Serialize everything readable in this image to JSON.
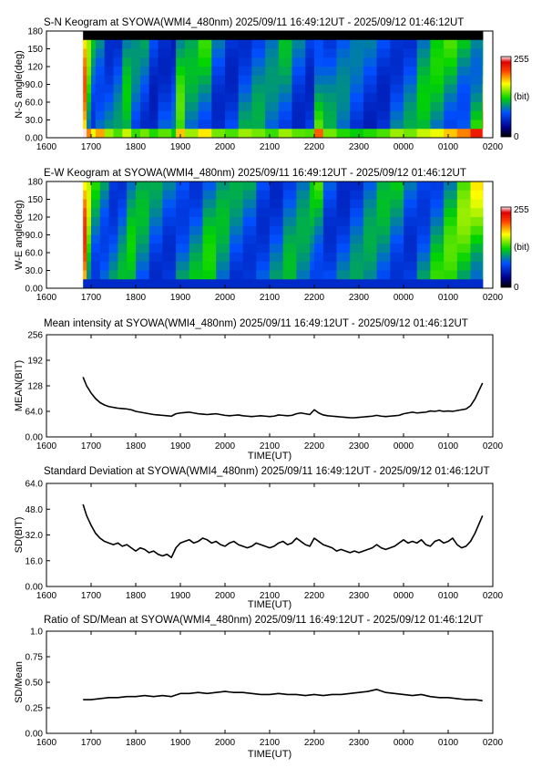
{
  "colors": {
    "line": "#000000",
    "axis": "#000000",
    "background": "#ffffff"
  },
  "x_axis": {
    "label": "TIME(UT)",
    "ticks": [
      "1600",
      "1700",
      "1800",
      "1900",
      "2000",
      "2100",
      "2200",
      "2300",
      "0000",
      "0100",
      "0200"
    ]
  },
  "chart_data": [
    {
      "id": "sn",
      "type": "heatmap",
      "title": "S-N Keogram at SYOWA(WMI4_480nm)   2025/09/11 16:49:12UT - 2025/09/12 01:46:12UT",
      "xlabel": "",
      "ylabel": "N-S angle(deg)",
      "ylim": [
        0,
        180
      ],
      "yticks": [
        "180",
        "150",
        "120",
        "90.0",
        "60.0",
        "30.0",
        "0.00"
      ],
      "xlim": [
        16.0,
        26.0
      ],
      "data_xrange": [
        16.82,
        25.77
      ],
      "colorbar": {
        "labels": [
          "255",
          "(bit)",
          "0"
        ],
        "range": [
          0,
          255
        ],
        "unit": "(bit)"
      },
      "columns": [
        {
          "x": 16.82,
          "v": 180
        },
        {
          "x": 16.9,
          "v": 130
        },
        {
          "x": 17.0,
          "v": 110
        },
        {
          "x": 17.1,
          "v": 125
        },
        {
          "x": 17.3,
          "v": 100
        },
        {
          "x": 17.5,
          "v": 90
        },
        {
          "x": 17.7,
          "v": 105
        },
        {
          "x": 17.9,
          "v": 88
        },
        {
          "x": 18.1,
          "v": 95
        },
        {
          "x": 18.3,
          "v": 85
        },
        {
          "x": 18.5,
          "v": 92
        },
        {
          "x": 18.8,
          "v": 80
        },
        {
          "x": 18.9,
          "v": 120
        },
        {
          "x": 19.1,
          "v": 100
        },
        {
          "x": 19.4,
          "v": 115
        },
        {
          "x": 19.7,
          "v": 95
        },
        {
          "x": 20.0,
          "v": 90
        },
        {
          "x": 20.3,
          "v": 100
        },
        {
          "x": 20.6,
          "v": 95
        },
        {
          "x": 20.9,
          "v": 88
        },
        {
          "x": 21.2,
          "v": 100
        },
        {
          "x": 21.5,
          "v": 92
        },
        {
          "x": 21.8,
          "v": 90
        },
        {
          "x": 22.0,
          "v": 135
        },
        {
          "x": 22.2,
          "v": 95
        },
        {
          "x": 22.5,
          "v": 85
        },
        {
          "x": 22.8,
          "v": 80
        },
        {
          "x": 23.1,
          "v": 85
        },
        {
          "x": 23.4,
          "v": 90
        },
        {
          "x": 23.7,
          "v": 100
        },
        {
          "x": 24.0,
          "v": 95
        },
        {
          "x": 24.3,
          "v": 105
        },
        {
          "x": 24.6,
          "v": 110
        },
        {
          "x": 24.9,
          "v": 120
        },
        {
          "x": 25.2,
          "v": 130
        },
        {
          "x": 25.5,
          "v": 150
        },
        {
          "x": 25.77,
          "v": 190
        }
      ]
    },
    {
      "id": "ew",
      "type": "heatmap",
      "title": "E-W Keogram at SYOWA(WMI4_480nm)   2025/09/11 16:49:12UT - 2025/09/12 01:46:12UT",
      "xlabel": "",
      "ylabel": "W-E angle(deg)",
      "ylim": [
        0,
        180
      ],
      "yticks": [
        "180",
        "150",
        "120",
        "90.0",
        "60.0",
        "30.0",
        "0.00"
      ],
      "xlim": [
        16.0,
        26.0
      ],
      "data_xrange": [
        16.82,
        25.77
      ],
      "colorbar": {
        "labels": [
          "255",
          "(bit)",
          "0"
        ],
        "range": [
          0,
          255
        ],
        "unit": "(bit)"
      },
      "columns": [
        {
          "x": 16.82,
          "v": 190
        },
        {
          "x": 16.9,
          "v": 140
        },
        {
          "x": 17.0,
          "v": 115
        },
        {
          "x": 17.2,
          "v": 120
        },
        {
          "x": 17.4,
          "v": 105
        },
        {
          "x": 17.6,
          "v": 100
        },
        {
          "x": 17.8,
          "v": 108
        },
        {
          "x": 18.0,
          "v": 100
        },
        {
          "x": 18.3,
          "v": 95
        },
        {
          "x": 18.6,
          "v": 100
        },
        {
          "x": 18.9,
          "v": 115
        },
        {
          "x": 19.2,
          "v": 105
        },
        {
          "x": 19.5,
          "v": 110
        },
        {
          "x": 19.8,
          "v": 100
        },
        {
          "x": 20.1,
          "v": 95
        },
        {
          "x": 20.4,
          "v": 105
        },
        {
          "x": 20.7,
          "v": 100
        },
        {
          "x": 21.0,
          "v": 95
        },
        {
          "x": 21.3,
          "v": 100
        },
        {
          "x": 21.6,
          "v": 95
        },
        {
          "x": 21.9,
          "v": 105
        },
        {
          "x": 22.0,
          "v": 125
        },
        {
          "x": 22.2,
          "v": 100
        },
        {
          "x": 22.5,
          "v": 95
        },
        {
          "x": 22.8,
          "v": 92
        },
        {
          "x": 23.1,
          "v": 95
        },
        {
          "x": 23.4,
          "v": 100
        },
        {
          "x": 23.7,
          "v": 105
        },
        {
          "x": 24.0,
          "v": 100
        },
        {
          "x": 24.3,
          "v": 110
        },
        {
          "x": 24.6,
          "v": 115
        },
        {
          "x": 24.9,
          "v": 120
        },
        {
          "x": 25.2,
          "v": 130
        },
        {
          "x": 25.5,
          "v": 150
        },
        {
          "x": 25.77,
          "v": 195
        }
      ]
    },
    {
      "id": "mean",
      "type": "line",
      "title": "Mean intensity at SYOWA(WMI4_480nm)   2025/09/11 16:49:12UT - 2025/09/12 01:46:12UT",
      "xlabel": "TIME(UT)",
      "ylabel": "MEAN(BIT)",
      "ylim": [
        0,
        256
      ],
      "yticks": [
        "256",
        "192",
        "128",
        "64.0",
        "0.00"
      ],
      "xlim": [
        16.0,
        26.0
      ],
      "series": [
        {
          "x": [
            16.82,
            16.9,
            17.0,
            17.1,
            17.2,
            17.3,
            17.4,
            17.5,
            17.6,
            17.7,
            17.8,
            17.9,
            18.0,
            18.1,
            18.2,
            18.3,
            18.4,
            18.5,
            18.6,
            18.7,
            18.8,
            18.9,
            19.0,
            19.1,
            19.2,
            19.3,
            19.4,
            19.5,
            19.6,
            19.7,
            19.8,
            19.9,
            20.0,
            20.1,
            20.2,
            20.3,
            20.4,
            20.5,
            20.6,
            20.7,
            20.8,
            20.9,
            21.0,
            21.1,
            21.2,
            21.3,
            21.4,
            21.5,
            21.6,
            21.7,
            21.8,
            21.9,
            22.0,
            22.1,
            22.2,
            22.3,
            22.4,
            22.5,
            22.6,
            22.7,
            22.8,
            22.9,
            23.0,
            23.1,
            23.2,
            23.3,
            23.4,
            23.5,
            23.6,
            23.7,
            23.8,
            23.9,
            24.0,
            24.1,
            24.2,
            24.3,
            24.4,
            24.5,
            24.6,
            24.7,
            24.8,
            24.9,
            25.0,
            25.1,
            25.2,
            25.3,
            25.4,
            25.5,
            25.6,
            25.77
          ],
          "y": [
            150,
            128,
            110,
            96,
            86,
            80,
            76,
            74,
            72,
            71,
            70,
            68,
            64,
            62,
            60,
            58,
            56,
            55,
            54,
            53,
            52,
            58,
            60,
            61,
            62,
            60,
            58,
            57,
            56,
            57,
            58,
            56,
            54,
            53,
            54,
            55,
            53,
            52,
            51,
            52,
            53,
            52,
            51,
            52,
            55,
            54,
            53,
            54,
            58,
            60,
            58,
            56,
            68,
            60,
            55,
            53,
            52,
            51,
            50,
            49,
            48,
            48,
            49,
            50,
            51,
            52,
            54,
            52,
            51,
            52,
            53,
            54,
            58,
            60,
            62,
            60,
            61,
            62,
            65,
            64,
            66,
            64,
            65,
            64,
            66,
            68,
            70,
            78,
            95,
            135
          ]
        }
      ]
    },
    {
      "id": "sd",
      "type": "line",
      "title": "Standard Deviation at SYOWA(WMI4_480nm)   2025/09/11 16:49:12UT - 2025/09/12 01:46:12UT",
      "xlabel": "TIME(UT)",
      "ylabel": "SD(BIT)",
      "ylim": [
        0,
        64
      ],
      "yticks": [
        "64.0",
        "48.0",
        "32.0",
        "16.0",
        "0.00"
      ],
      "xlim": [
        16.0,
        26.0
      ],
      "series": [
        {
          "x": [
            16.82,
            16.9,
            17.0,
            17.1,
            17.2,
            17.3,
            17.4,
            17.5,
            17.6,
            17.7,
            17.8,
            17.9,
            18.0,
            18.1,
            18.2,
            18.3,
            18.4,
            18.5,
            18.6,
            18.7,
            18.8,
            18.9,
            19.0,
            19.1,
            19.2,
            19.3,
            19.4,
            19.5,
            19.6,
            19.7,
            19.8,
            19.9,
            20.0,
            20.1,
            20.2,
            20.3,
            20.4,
            20.5,
            20.6,
            20.7,
            20.8,
            20.9,
            21.0,
            21.1,
            21.2,
            21.3,
            21.4,
            21.5,
            21.6,
            21.7,
            21.8,
            21.9,
            22.0,
            22.1,
            22.2,
            22.3,
            22.4,
            22.5,
            22.6,
            22.7,
            22.8,
            22.9,
            23.0,
            23.1,
            23.2,
            23.3,
            23.4,
            23.5,
            23.6,
            23.7,
            23.8,
            23.9,
            24.0,
            24.1,
            24.2,
            24.3,
            24.4,
            24.5,
            24.6,
            24.7,
            24.8,
            24.9,
            25.0,
            25.1,
            25.2,
            25.3,
            25.4,
            25.5,
            25.6,
            25.77
          ],
          "y": [
            51,
            44,
            38,
            33,
            30,
            28,
            27,
            26,
            27,
            25,
            26,
            24,
            22,
            24,
            23,
            21,
            22,
            20,
            19,
            20,
            18,
            24,
            27,
            28,
            29,
            27,
            28,
            30,
            29,
            27,
            28,
            26,
            25,
            27,
            28,
            26,
            25,
            24,
            25,
            27,
            26,
            25,
            24,
            25,
            27,
            28,
            26,
            27,
            30,
            28,
            26,
            25,
            30,
            28,
            26,
            25,
            24,
            22,
            23,
            22,
            21,
            22,
            21,
            22,
            23,
            24,
            26,
            24,
            23,
            24,
            25,
            27,
            29,
            27,
            28,
            27,
            29,
            26,
            25,
            28,
            29,
            27,
            28,
            30,
            26,
            24,
            25,
            28,
            33,
            44
          ]
        }
      ]
    },
    {
      "id": "ratio",
      "type": "line",
      "title": "Ratio of SD/Mean at SYOWA(WMI4_480nm)   2025/09/11 16:49:12UT - 2025/09/12 01:46:12UT",
      "xlabel": "TIME(UT)",
      "ylabel": "SD/Mean",
      "ylim": [
        0,
        1.0
      ],
      "yticks": [
        "1.0",
        "0.75",
        "0.50",
        "0.25",
        "0.00"
      ],
      "xlim": [
        16.0,
        26.0
      ],
      "series": [
        {
          "x": [
            16.82,
            17.0,
            17.2,
            17.4,
            17.6,
            17.8,
            18.0,
            18.2,
            18.4,
            18.6,
            18.8,
            19.0,
            19.2,
            19.4,
            19.6,
            19.8,
            20.0,
            20.2,
            20.4,
            20.6,
            20.8,
            21.0,
            21.2,
            21.4,
            21.6,
            21.8,
            22.0,
            22.2,
            22.4,
            22.6,
            22.8,
            23.0,
            23.2,
            23.4,
            23.6,
            23.8,
            24.0,
            24.2,
            24.4,
            24.6,
            24.8,
            25.0,
            25.2,
            25.4,
            25.6,
            25.77
          ],
          "y": [
            0.33,
            0.33,
            0.34,
            0.35,
            0.35,
            0.36,
            0.36,
            0.37,
            0.36,
            0.37,
            0.36,
            0.39,
            0.39,
            0.4,
            0.39,
            0.4,
            0.41,
            0.4,
            0.4,
            0.39,
            0.38,
            0.38,
            0.39,
            0.38,
            0.38,
            0.37,
            0.38,
            0.37,
            0.38,
            0.38,
            0.39,
            0.4,
            0.41,
            0.43,
            0.4,
            0.39,
            0.38,
            0.37,
            0.38,
            0.36,
            0.35,
            0.35,
            0.34,
            0.33,
            0.33,
            0.32
          ]
        }
      ]
    }
  ]
}
